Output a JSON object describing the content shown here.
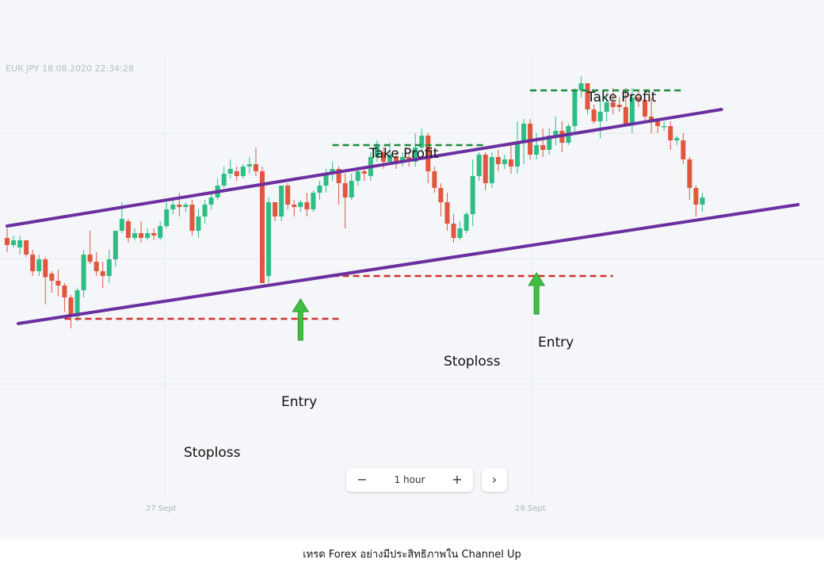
{
  "header": {
    "instrument_label": "EUR JPY  18.08.2020 22:34:28"
  },
  "chart_data": {
    "type": "candlestick",
    "title": "",
    "x_ticks": [
      "27 Sept",
      "29 Sept"
    ],
    "grid": true,
    "colors": {
      "up": "#2ebd85",
      "down": "#e1573e",
      "channel": "#6b2fa0",
      "take_profit": "#1e8a3e",
      "stoploss": "#d0312d",
      "arrow": "#3fbf3f"
    },
    "ohlc": [
      [
        52,
        46,
        40,
        60
      ],
      [
        46,
        50,
        54,
        44
      ],
      [
        44,
        50,
        54,
        38
      ],
      [
        50,
        38,
        36,
        44
      ],
      [
        38,
        24,
        20,
        42
      ],
      [
        24,
        34,
        38,
        20
      ],
      [
        34,
        19,
        -4,
        36
      ],
      [
        22,
        16,
        6,
        24
      ],
      [
        16,
        12,
        3,
        25
      ],
      [
        12,
        2,
        -10,
        14
      ],
      [
        2,
        -14,
        -24,
        4
      ],
      [
        -14,
        8,
        10,
        -18
      ],
      [
        8,
        38,
        42,
        2
      ],
      [
        38,
        32,
        58,
        30
      ],
      [
        32,
        24,
        40,
        20
      ],
      [
        24,
        20,
        32,
        10
      ],
      [
        20,
        34,
        42,
        14
      ],
      [
        34,
        58,
        58,
        28
      ],
      [
        58,
        68,
        82,
        56
      ],
      [
        66,
        52,
        68,
        48
      ],
      [
        52,
        56,
        60,
        50
      ],
      [
        56,
        52,
        66,
        48
      ],
      [
        52,
        56,
        60,
        50
      ],
      [
        56,
        54,
        60,
        50
      ],
      [
        52,
        62,
        66,
        50
      ],
      [
        62,
        76,
        82,
        60
      ],
      [
        76,
        80,
        84,
        72
      ],
      [
        80,
        78,
        90,
        70
      ],
      [
        78,
        80,
        82,
        74
      ],
      [
        80,
        58,
        84,
        54
      ],
      [
        58,
        70,
        76,
        52
      ],
      [
        70,
        80,
        84,
        64
      ],
      [
        80,
        86,
        90,
        76
      ],
      [
        86,
        96,
        102,
        84
      ],
      [
        96,
        106,
        112,
        94
      ],
      [
        106,
        110,
        118,
        102
      ],
      [
        108,
        104,
        112,
        100
      ],
      [
        104,
        112,
        114,
        102
      ],
      [
        112,
        114,
        120,
        106
      ],
      [
        114,
        108,
        128,
        104
      ],
      [
        108,
        14,
        112,
        14
      ],
      [
        20,
        82,
        86,
        14
      ],
      [
        82,
        70,
        82,
        66
      ],
      [
        70,
        96,
        96,
        66
      ],
      [
        96,
        80,
        98,
        76
      ],
      [
        80,
        78,
        84,
        70
      ],
      [
        78,
        82,
        84,
        74
      ],
      [
        82,
        76,
        90,
        70
      ],
      [
        76,
        90,
        92,
        74
      ],
      [
        90,
        96,
        100,
        84
      ],
      [
        96,
        106,
        110,
        90
      ],
      [
        106,
        110,
        116,
        100
      ],
      [
        110,
        98,
        112,
        80
      ],
      [
        98,
        86,
        106,
        60
      ],
      [
        86,
        100,
        106,
        84
      ],
      [
        100,
        108,
        112,
        96
      ],
      [
        108,
        106,
        112,
        100
      ],
      [
        104,
        120,
        124,
        100
      ],
      [
        120,
        130,
        134,
        116
      ],
      [
        124,
        116,
        128,
        110
      ],
      [
        116,
        122,
        132,
        114
      ],
      [
        120,
        116,
        124,
        110
      ],
      [
        116,
        120,
        124,
        112
      ],
      [
        120,
        116,
        124,
        112
      ],
      [
        116,
        128,
        140,
        112
      ],
      [
        128,
        138,
        144,
        124
      ],
      [
        138,
        108,
        140,
        98
      ],
      [
        108,
        94,
        112,
        90
      ],
      [
        94,
        82,
        98,
        70
      ],
      [
        82,
        64,
        90,
        58
      ],
      [
        64,
        52,
        72,
        48
      ],
      [
        52,
        60,
        66,
        50
      ],
      [
        58,
        72,
        74,
        56
      ],
      [
        72,
        104,
        118,
        62
      ],
      [
        104,
        122,
        124,
        100
      ],
      [
        122,
        98,
        124,
        92
      ],
      [
        98,
        120,
        124,
        94
      ],
      [
        120,
        114,
        126,
        108
      ],
      [
        114,
        118,
        122,
        110
      ],
      [
        118,
        112,
        130,
        106
      ],
      [
        112,
        132,
        150,
        106
      ],
      [
        132,
        148,
        152,
        114
      ],
      [
        148,
        122,
        152,
        118
      ],
      [
        122,
        130,
        140,
        118
      ],
      [
        130,
        126,
        144,
        120
      ],
      [
        126,
        138,
        144,
        122
      ],
      [
        138,
        142,
        154,
        130
      ],
      [
        142,
        132,
        150,
        124
      ],
      [
        132,
        146,
        148,
        130
      ],
      [
        146,
        176,
        178,
        140
      ],
      [
        176,
        182,
        188,
        170
      ],
      [
        182,
        160,
        182,
        156
      ],
      [
        160,
        150,
        164,
        148
      ],
      [
        150,
        158,
        168,
        136
      ],
      [
        158,
        166,
        174,
        150
      ],
      [
        166,
        162,
        178,
        156
      ],
      [
        164,
        162,
        170,
        158
      ],
      [
        162,
        148,
        178,
        146
      ],
      [
        148,
        170,
        178,
        140
      ],
      [
        170,
        168,
        176,
        162
      ],
      [
        168,
        154,
        172,
        150
      ],
      [
        154,
        150,
        170,
        140
      ],
      [
        150,
        146,
        152,
        140
      ],
      [
        146,
        146,
        150,
        142
      ],
      [
        146,
        134,
        150,
        126
      ],
      [
        134,
        136,
        138,
        130
      ],
      [
        134,
        118,
        140,
        114
      ],
      [
        118,
        94,
        120,
        84
      ],
      [
        94,
        80,
        96,
        70
      ],
      [
        80,
        86,
        90,
        74
      ]
    ],
    "channel_upper": {
      "start": [
        0,
        62
      ],
      "end": [
        112,
        160
      ]
    },
    "channel_lower": {
      "start": [
        0,
        -20
      ],
      "end": [
        124,
        80
      ]
    },
    "take_profit_levels": [
      {
        "label": "Take Profit",
        "level": 130,
        "from": 51,
        "to": 75
      },
      {
        "label": "Take Profit",
        "level": 176,
        "from": 82,
        "to": 106
      }
    ],
    "stoploss_levels": [
      {
        "label": "Stoploss",
        "level": -16,
        "from": 9,
        "to": 52
      },
      {
        "label": "Stoploss",
        "level": 20,
        "from": 51,
        "to": 95
      }
    ],
    "entry_points": [
      {
        "label": "Entry",
        "index": 46,
        "level": 14
      },
      {
        "label": "Entry",
        "index": 83,
        "level": 36
      }
    ],
    "annotations": {
      "take_profit_1": "Take Profit",
      "take_profit_2": "Take Profit",
      "stoploss_1": "Stoploss",
      "stoploss_2": "Stoploss",
      "entry_1": "Entry",
      "entry_2": "Entry"
    }
  },
  "zoom_control": {
    "minus": "−",
    "label": "1 hour",
    "plus": "+",
    "next": "›"
  },
  "caption": "เทรด Forex อย่างมีประสิทธิภาพใน Channel Up"
}
